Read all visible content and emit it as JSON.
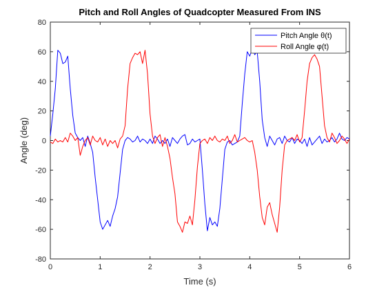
{
  "chart_data": {
    "type": "line",
    "title": "Pitch and Roll Angles of Quadcopter Measured From INS",
    "xlabel": "Time (s)",
    "ylabel": "Angle (deg)",
    "xlim": [
      0,
      6
    ],
    "ylim": [
      -80,
      80
    ],
    "xticks": [
      "0",
      "1",
      "2",
      "3",
      "4",
      "5",
      "6"
    ],
    "yticks": [
      "-80",
      "-60",
      "-40",
      "-20",
      "0",
      "20",
      "40",
      "60",
      "80"
    ],
    "grid": false,
    "legend_position": "top-right",
    "series": [
      {
        "name": "Pitch Angle θ(t)",
        "color": "#0000ff",
        "x": [
          0.0,
          0.05,
          0.1,
          0.15,
          0.2,
          0.25,
          0.3,
          0.35,
          0.4,
          0.45,
          0.5,
          0.55,
          0.6,
          0.65,
          0.7,
          0.75,
          0.8,
          0.85,
          0.9,
          0.95,
          1.0,
          1.05,
          1.1,
          1.15,
          1.2,
          1.25,
          1.3,
          1.35,
          1.4,
          1.45,
          1.5,
          1.55,
          1.6,
          1.65,
          1.7,
          1.75,
          1.8,
          1.85,
          1.9,
          1.95,
          2.0,
          2.05,
          2.1,
          2.15,
          2.2,
          2.25,
          2.3,
          2.35,
          2.4,
          2.45,
          2.5,
          2.55,
          2.6,
          2.65,
          2.7,
          2.75,
          2.8,
          2.85,
          2.9,
          2.95,
          3.0,
          3.05,
          3.1,
          3.15,
          3.2,
          3.25,
          3.3,
          3.35,
          3.4,
          3.45,
          3.5,
          3.55,
          3.6,
          3.65,
          3.7,
          3.75,
          3.8,
          3.85,
          3.9,
          3.95,
          4.0,
          4.05,
          4.1,
          4.15,
          4.2,
          4.25,
          4.3,
          4.35,
          4.4,
          4.45,
          4.5,
          4.55,
          4.6,
          4.65,
          4.7,
          4.75,
          4.8,
          4.85,
          4.9,
          4.95,
          5.0,
          5.05,
          5.1,
          5.15,
          5.2,
          5.25,
          5.3,
          5.35,
          5.4,
          5.45,
          5.5,
          5.55,
          5.6,
          5.65,
          5.7,
          5.75,
          5.8,
          5.85,
          5.9,
          5.95,
          6.0
        ],
        "y": [
          3,
          18,
          35,
          61,
          59,
          52,
          53,
          57,
          35,
          17,
          5,
          2,
          0,
          2,
          -4,
          3,
          -2,
          -8,
          -25,
          -40,
          -55,
          -60,
          -57,
          -54,
          -58,
          -51,
          -46,
          -38,
          -22,
          -6,
          0,
          2,
          1,
          -1,
          0,
          3,
          -1,
          1,
          0,
          -2,
          1,
          -2,
          3,
          1,
          -2,
          0,
          -2,
          1,
          -4,
          2,
          0,
          -2,
          1,
          3,
          4,
          -3,
          -2,
          1,
          -1,
          0,
          1,
          -20,
          -43,
          -61,
          -52,
          -57,
          -55,
          -58,
          -46,
          -26,
          -6,
          -1,
          0,
          -3,
          -2,
          -1,
          3,
          25,
          45,
          60,
          57,
          62,
          58,
          60,
          40,
          14,
          2,
          -4,
          3,
          0,
          -3,
          1,
          2,
          -2,
          3,
          0,
          -1,
          2,
          -2,
          1,
          0,
          -2,
          1,
          -4,
          2,
          -3,
          -1,
          1,
          3,
          -2,
          1,
          -1,
          0,
          2,
          -1,
          1,
          5,
          1,
          0,
          2,
          1
        ]
      },
      {
        "name": "Roll Angle φ(t)",
        "color": "#ff0000",
        "x": [
          0.0,
          0.05,
          0.1,
          0.15,
          0.2,
          0.25,
          0.3,
          0.35,
          0.4,
          0.45,
          0.5,
          0.55,
          0.6,
          0.65,
          0.7,
          0.75,
          0.8,
          0.85,
          0.9,
          0.95,
          1.0,
          1.05,
          1.1,
          1.15,
          1.2,
          1.25,
          1.3,
          1.35,
          1.4,
          1.45,
          1.5,
          1.55,
          1.6,
          1.65,
          1.7,
          1.75,
          1.8,
          1.85,
          1.9,
          1.95,
          2.0,
          2.05,
          2.1,
          2.15,
          2.2,
          2.25,
          2.3,
          2.35,
          2.4,
          2.45,
          2.5,
          2.55,
          2.6,
          2.65,
          2.7,
          2.75,
          2.8,
          2.85,
          2.9,
          2.95,
          3.0,
          3.05,
          3.1,
          3.15,
          3.2,
          3.25,
          3.3,
          3.35,
          3.4,
          3.45,
          3.5,
          3.55,
          3.6,
          3.65,
          3.7,
          3.75,
          3.8,
          3.85,
          3.9,
          3.95,
          4.0,
          4.05,
          4.1,
          4.15,
          4.2,
          4.25,
          4.3,
          4.35,
          4.4,
          4.45,
          4.5,
          4.55,
          4.6,
          4.65,
          4.7,
          4.75,
          4.8,
          4.85,
          4.9,
          4.95,
          5.0,
          5.05,
          5.1,
          5.15,
          5.2,
          5.25,
          5.3,
          5.35,
          5.4,
          5.45,
          5.5,
          5.55,
          5.6,
          5.65,
          5.7,
          5.75,
          5.8,
          5.85,
          5.9,
          5.95,
          6.0
        ],
        "y": [
          -1,
          -2,
          1,
          -1,
          0,
          -1,
          2,
          -1,
          5,
          3,
          0,
          2,
          -10,
          -4,
          0,
          2,
          -3,
          3,
          0,
          -1,
          2,
          -3,
          1,
          -4,
          0,
          -2,
          0,
          -5,
          1,
          3,
          10,
          35,
          52,
          56,
          59,
          58,
          60,
          52,
          61,
          45,
          18,
          3,
          -2,
          2,
          4,
          -4,
          2,
          -4,
          -12,
          -25,
          -36,
          -55,
          -58,
          -62,
          -55,
          -56,
          -51,
          -57,
          -40,
          -18,
          -2,
          0,
          1,
          -2,
          2,
          0,
          3,
          0,
          -1,
          1,
          0,
          3,
          -2,
          0,
          4,
          -1,
          0,
          1,
          2,
          0,
          -1,
          0,
          -8,
          -20,
          -38,
          -52,
          -57,
          -45,
          -42,
          -50,
          -56,
          -62,
          -45,
          -20,
          -3,
          0,
          1,
          2,
          0,
          4,
          -1,
          2,
          20,
          40,
          52,
          56,
          58,
          55,
          50,
          30,
          10,
          2,
          -1,
          5,
          2,
          -2,
          0,
          3,
          1,
          -2,
          1
        ]
      }
    ]
  }
}
